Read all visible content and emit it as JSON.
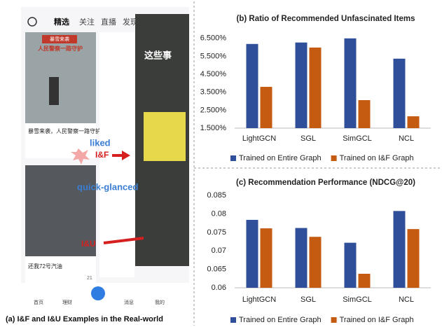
{
  "chart_data": [
    {
      "type": "bar",
      "title": "(b) Ratio of Recommended Unfascinated Items",
      "categories": [
        "LightGCN",
        "SGL",
        "SimGCL",
        "NCL"
      ],
      "series": [
        {
          "name": "Trained on Entire Graph",
          "color": "#2f4f9a",
          "values": [
            6.19,
            6.27,
            6.5,
            5.37
          ]
        },
        {
          "name": "Trained on I&F Graph",
          "color": "#c55a11",
          "values": [
            3.8,
            5.99,
            3.06,
            2.16
          ]
        }
      ],
      "ylim": [
        1.5,
        7.0
      ],
      "yticks": [
        {
          "value": 1.5,
          "label": "1.500%"
        },
        {
          "value": 2.5,
          "label": "2.500%"
        },
        {
          "value": 3.5,
          "label": "3.500%"
        },
        {
          "value": 4.5,
          "label": "4.500%"
        },
        {
          "value": 5.5,
          "label": "5.500%"
        },
        {
          "value": 6.5,
          "label": "6.500%"
        }
      ],
      "legend": "bottom"
    },
    {
      "type": "bar",
      "title": "(c) Recommendation Performance (NDCG@20)",
      "categories": [
        "LightGCN",
        "SGL",
        "SimGCL",
        "NCL"
      ],
      "series": [
        {
          "name": "Trained on Entire Graph",
          "color": "#2f4f9a",
          "values": [
            0.0784,
            0.0762,
            0.0722,
            0.0808
          ]
        },
        {
          "name": "Trained on I&F Graph",
          "color": "#c55a11",
          "values": [
            0.0761,
            0.0738,
            0.0638,
            0.0759
          ]
        }
      ],
      "ylim": [
        0.06,
        0.0875
      ],
      "yticks": [
        0.06,
        0.065,
        0.07,
        0.075,
        0.08,
        0.085
      ],
      "legend": "bottom"
    }
  ],
  "screenshot": {
    "tabs": [
      "精选",
      "关注",
      "直播",
      "发现"
    ],
    "card1_badge": "暴雪来袭",
    "card1_banner": "人民警察一路守护",
    "card1_caption": "暴雪来袭，人民警察一路守护",
    "card2_caption": "还我72号汽油",
    "card2_likes": "21",
    "video_text": "这些事",
    "liked": "liked",
    "if_label": "I&F",
    "quick": "quick-glanced",
    "iu_label": "I&U",
    "nav": [
      "首页",
      "理财",
      "消息",
      "我的"
    ],
    "caption": "(a)  I&F and I&U Examples in the Real-world"
  }
}
